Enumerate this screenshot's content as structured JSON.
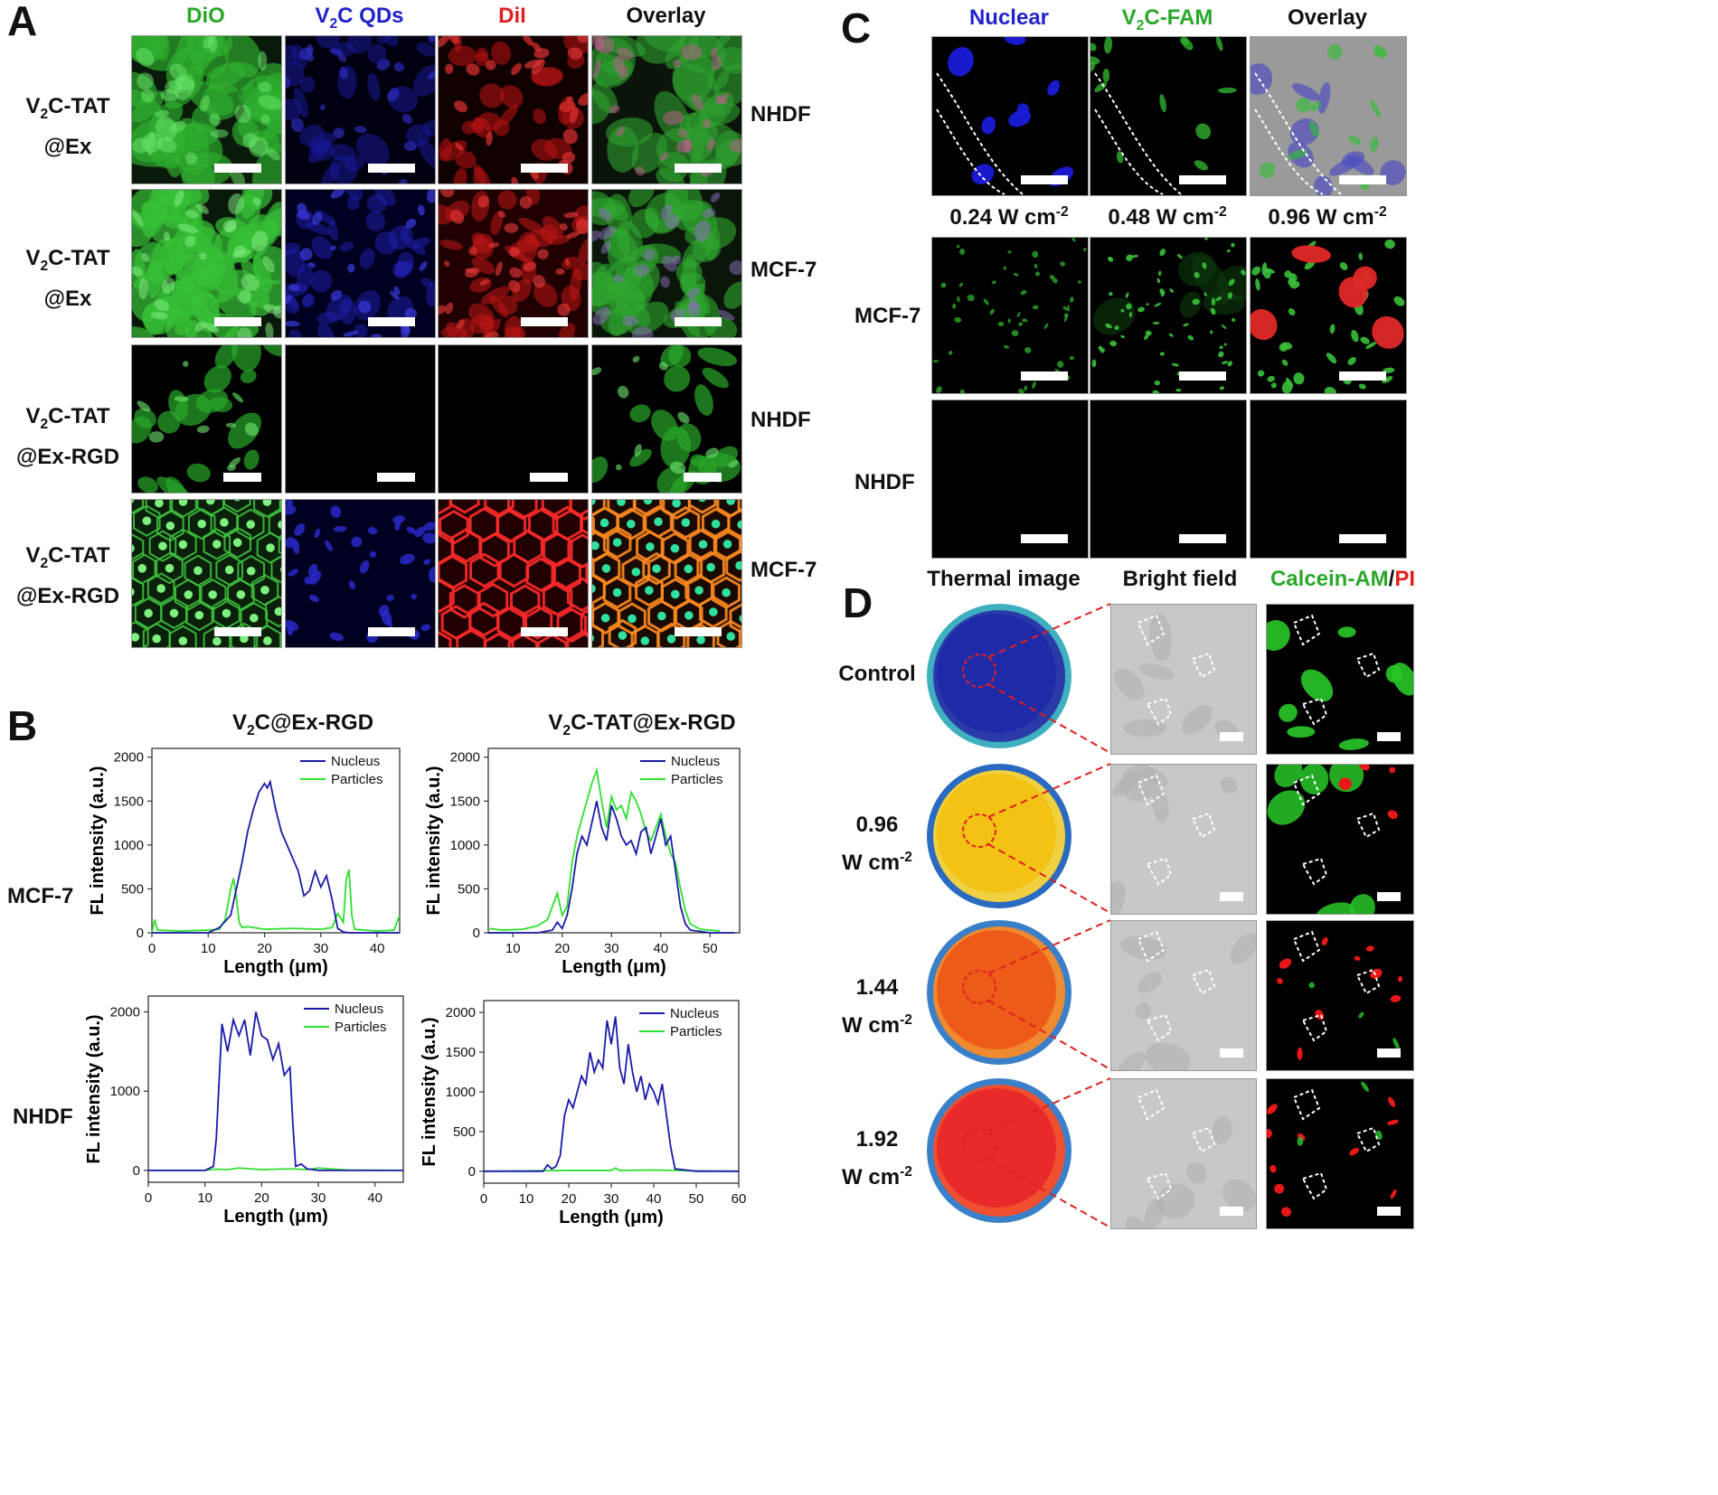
{
  "panels": {
    "A": {
      "label": "A",
      "columns": [
        "DiO",
        "V2C QDs",
        "DiI",
        "Overlay"
      ],
      "column_colors": [
        "#2aa82a",
        "#2222cc",
        "#e02020",
        "#111111"
      ],
      "rows": [
        {
          "line1": "V2C-TAT",
          "line2": "@Ex",
          "cell": "NHDF"
        },
        {
          "line1": "V2C-TAT",
          "line2": "@Ex",
          "cell": "MCF-7"
        },
        {
          "line1": "V2C-TAT",
          "line2": "@Ex-RGD",
          "cell": "NHDF"
        },
        {
          "line1": "V2C-TAT",
          "line2": "@Ex-RGD",
          "cell": "MCF-7"
        }
      ]
    },
    "B": {
      "label": "B",
      "col_titles": [
        "V2C@Ex-RGD",
        "V2C-TAT@Ex-RGD"
      ],
      "row_labels": [
        "MCF-7",
        "NHDF"
      ],
      "ylabel": "FL intensity (a.u.)",
      "xlabel": "Length (μm)",
      "legend": [
        "Nucleus",
        "Particles"
      ]
    },
    "C": {
      "label": "C",
      "columns": [
        "Nuclear",
        "V2C-FAM",
        "Overlay"
      ],
      "column_colors": [
        "#2222cc",
        "#2aa82a",
        "#111111"
      ],
      "powers": [
        "0.24 W cm-2",
        "0.48 W cm-2",
        "0.96 W cm-2"
      ],
      "rows": [
        "MCF-7",
        "NHDF"
      ]
    },
    "D": {
      "label": "D",
      "columns": [
        "Thermal image",
        "Bright field"
      ],
      "live_dead": {
        "a": "Calcein-AM",
        "sep": "/",
        "b": "PI"
      },
      "rows": [
        {
          "line1": "Control",
          "line2": ""
        },
        {
          "line1": "0.96",
          "line2": "W cm-2"
        },
        {
          "line1": "1.44",
          "line2": "W cm-2"
        },
        {
          "line1": "1.92",
          "line2": "W cm-2"
        }
      ]
    }
  },
  "chart_data": [
    {
      "type": "line",
      "title": "V2C@Ex-RGD",
      "row": "MCF-7",
      "xlabel": "Length (μm)",
      "ylabel": "FL intensity (a.u.)",
      "xlim": [
        0,
        44
      ],
      "ylim": [
        0,
        2100
      ],
      "xticks": [
        0,
        10,
        20,
        30,
        40
      ],
      "yticks": [
        0,
        500,
        1000,
        1500,
        2000
      ],
      "legend_pos": "top-right",
      "series": [
        {
          "name": "Nucleus",
          "color": "#1a1aa8",
          "x": [
            0,
            5,
            10,
            12,
            14,
            15,
            16,
            17,
            18,
            19,
            20,
            20.5,
            21,
            22,
            23,
            24,
            25,
            26,
            27,
            28,
            29,
            30,
            31,
            32,
            33,
            34,
            35,
            40,
            44
          ],
          "y": [
            0,
            0,
            0,
            60,
            200,
            500,
            800,
            1150,
            1400,
            1600,
            1700,
            1650,
            1720,
            1400,
            1150,
            1000,
            850,
            700,
            420,
            480,
            700,
            520,
            650,
            380,
            50,
            10,
            0,
            0,
            0
          ]
        },
        {
          "name": "Particles",
          "color": "#2ee02e",
          "x": [
            0,
            0.5,
            1,
            5,
            10,
            12,
            13,
            14,
            14.5,
            15,
            15.5,
            16,
            17,
            20,
            25,
            30,
            32,
            33,
            34,
            34.5,
            35,
            35.5,
            36,
            40,
            43,
            44
          ],
          "y": [
            0,
            150,
            30,
            20,
            30,
            40,
            150,
            500,
            620,
            400,
            120,
            60,
            70,
            40,
            50,
            40,
            60,
            220,
            120,
            600,
            720,
            200,
            40,
            20,
            30,
            200
          ]
        }
      ]
    },
    {
      "type": "line",
      "title": "V2C-TAT@Ex-RGD",
      "row": "MCF-7",
      "xlabel": "Length (μm)",
      "ylabel": "FL intensity (a.u.)",
      "xlim": [
        5,
        56
      ],
      "ylim": [
        0,
        2100
      ],
      "xticks": [
        10,
        20,
        30,
        40,
        50
      ],
      "yticks": [
        0,
        500,
        1000,
        1500,
        2000
      ],
      "legend_pos": "top-right",
      "series": [
        {
          "name": "Nucleus",
          "color": "#1a1aa8",
          "x": [
            5,
            10,
            15,
            18,
            19,
            20,
            21,
            22,
            23,
            24,
            25,
            26,
            27,
            28,
            29,
            30,
            31,
            32,
            33,
            34,
            35,
            36,
            37,
            38,
            39,
            40,
            41,
            42,
            43,
            44,
            45,
            46,
            50,
            55
          ],
          "y": [
            0,
            0,
            0,
            30,
            120,
            50,
            200,
            500,
            900,
            1100,
            1000,
            1250,
            1500,
            1200,
            1050,
            1450,
            1300,
            1100,
            1000,
            1050,
            900,
            1150,
            1200,
            900,
            1100,
            1300,
            1000,
            1100,
            700,
            300,
            100,
            30,
            0,
            0
          ]
        },
        {
          "name": "Particles",
          "color": "#2ee02e",
          "x": [
            5,
            8,
            12,
            15,
            17,
            18,
            19,
            20,
            21,
            22,
            23,
            24,
            25,
            26,
            27,
            28,
            29,
            30,
            31,
            32,
            33,
            34,
            35,
            36,
            37,
            38,
            39,
            40,
            41,
            42,
            43,
            44,
            45,
            46,
            48,
            52
          ],
          "y": [
            50,
            30,
            40,
            80,
            150,
            300,
            450,
            200,
            300,
            800,
            1100,
            1300,
            1500,
            1700,
            1850,
            1500,
            1200,
            1550,
            1400,
            1450,
            1300,
            1600,
            1500,
            1350,
            1150,
            1050,
            1200,
            1350,
            1100,
            900,
            800,
            500,
            250,
            100,
            40,
            20
          ]
        }
      ]
    },
    {
      "type": "line",
      "title": "V2C@Ex-RGD",
      "row": "NHDF",
      "xlabel": "Length (μm)",
      "ylabel": "FL intensity (a.u.)",
      "xlim": [
        0,
        45
      ],
      "ylim": [
        -150,
        2200
      ],
      "xticks": [
        0,
        10,
        20,
        30,
        40
      ],
      "yticks": [
        0,
        1000,
        2000
      ],
      "legend_pos": "top-right",
      "series": [
        {
          "name": "Nucleus",
          "color": "#1a1aa8",
          "x": [
            0,
            10,
            11.5,
            12,
            13,
            14,
            15,
            16,
            17,
            18,
            19,
            20,
            21,
            22,
            23,
            24,
            25,
            25.5,
            26,
            27,
            28,
            30,
            45
          ],
          "y": [
            0,
            0,
            50,
            400,
            1850,
            1500,
            1900,
            1700,
            1900,
            1450,
            2000,
            1700,
            1650,
            1400,
            1600,
            1200,
            1300,
            600,
            50,
            80,
            20,
            0,
            0
          ]
        },
        {
          "name": "Particles",
          "color": "#2ee02e",
          "x": [
            0,
            10,
            12,
            14,
            16,
            20,
            25,
            28,
            30,
            35,
            45
          ],
          "y": [
            0,
            0,
            15,
            10,
            30,
            10,
            20,
            10,
            30,
            5,
            0
          ]
        }
      ]
    },
    {
      "type": "line",
      "title": "V2C-TAT@Ex-RGD",
      "row": "NHDF",
      "xlabel": "Length (μm)",
      "ylabel": "FL intensity (a.u.)",
      "xlim": [
        0,
        60
      ],
      "ylim": [
        -150,
        2150
      ],
      "xticks": [
        0,
        10,
        20,
        30,
        40,
        50,
        60
      ],
      "yticks": [
        0,
        500,
        1000,
        1500,
        2000
      ],
      "legend_pos": "top-right",
      "series": [
        {
          "name": "Nucleus",
          "color": "#1a1aa8",
          "x": [
            0,
            14,
            15,
            16,
            17,
            18,
            19,
            20,
            21,
            22,
            23,
            24,
            25,
            26,
            27,
            28,
            29,
            30,
            31,
            32,
            33,
            34,
            35,
            36,
            37,
            38,
            39,
            40,
            41,
            42,
            43,
            44,
            45,
            50,
            60
          ],
          "y": [
            0,
            0,
            80,
            30,
            60,
            200,
            700,
            900,
            800,
            1000,
            1200,
            1100,
            1500,
            1250,
            1400,
            1300,
            1900,
            1600,
            1950,
            1300,
            1100,
            1600,
            1250,
            1000,
            1200,
            900,
            1100,
            1000,
            850,
            1100,
            700,
            300,
            30,
            0,
            0
          ]
        },
        {
          "name": "Particles",
          "color": "#2ee02e",
          "x": [
            0,
            10,
            20,
            30,
            31,
            32,
            40,
            50,
            60
          ],
          "y": [
            0,
            5,
            10,
            10,
            40,
            10,
            15,
            5,
            0
          ]
        }
      ]
    }
  ]
}
